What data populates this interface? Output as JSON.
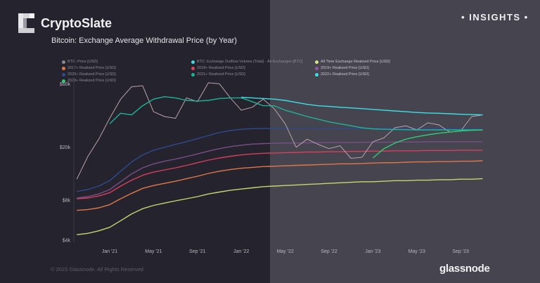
{
  "header": {
    "brand": "CryptoSlate",
    "subtitle": "Bitcoin: Exchange Average Withdrawal Price (by Year)",
    "badge": "• INSIGHTS •"
  },
  "footer": {
    "copyright": "© 2023 Glassnode. All Rights Reserved.",
    "logo_text": "glassnode"
  },
  "colors": {
    "background_left": "#25232d",
    "background_right": "#45444f"
  },
  "chart_data": {
    "type": "line",
    "title": "Bitcoin: Exchange Average Withdrawal Price (by Year)",
    "y_scale": "log",
    "ylim": [
      4000,
      70000
    ],
    "y_ticks": [
      {
        "value": 60000,
        "label": "$60k"
      },
      {
        "value": 20000,
        "label": "$20k"
      },
      {
        "value": 8000,
        "label": "$8k"
      },
      {
        "value": 4000,
        "label": "$4k"
      }
    ],
    "x_ticks": [
      {
        "value": "2021-01",
        "label": "Jan '21"
      },
      {
        "value": "2021-05",
        "label": "May '21"
      },
      {
        "value": "2021-09",
        "label": "Sep '21"
      },
      {
        "value": "2022-01",
        "label": "Jan '22"
      },
      {
        "value": "2022-05",
        "label": "May '22"
      },
      {
        "value": "2022-09",
        "label": "Sep '22"
      },
      {
        "value": "2023-01",
        "label": "Jan '23"
      },
      {
        "value": "2023-05",
        "label": "May '23"
      },
      {
        "value": "2023-09",
        "label": "Sep '23"
      }
    ],
    "grid": false,
    "legend_position": "top",
    "x": [
      "2020-10",
      "2020-11",
      "2020-12",
      "2021-01",
      "2021-02",
      "2021-03",
      "2021-04",
      "2021-05",
      "2021-06",
      "2021-07",
      "2021-08",
      "2021-09",
      "2021-10",
      "2021-11",
      "2021-12",
      "2022-01",
      "2022-02",
      "2022-03",
      "2022-04",
      "2022-05",
      "2022-06",
      "2022-07",
      "2022-08",
      "2022-09",
      "2022-10",
      "2022-11",
      "2022-12",
      "2023-01",
      "2023-02",
      "2023-03",
      "2023-04",
      "2023-05",
      "2023-06",
      "2023-07",
      "2023-08",
      "2023-09",
      "2023-10",
      "2023-11"
    ],
    "legend": [
      {
        "name": "BTC: Price [USD]",
        "color": "#8a8990",
        "col": 0
      },
      {
        "name": "2017+ Realized Price [USD]",
        "color": "#e0784a",
        "col": 0
      },
      {
        "name": "2020+ Realized Price [USD]",
        "color": "#2f4a8c",
        "col": 0
      },
      {
        "name": "2023+ Realized Price [USD]",
        "color": "#2ecc71",
        "col": 0
      },
      {
        "name": "BTC: Exchange Outflow Volume (Total) - All Exchanges [BTC]",
        "color": "#3fd6e6",
        "col": 1
      },
      {
        "name": "2018+ Realized Price [USD]",
        "color": "#d6405c",
        "col": 1
      },
      {
        "name": "2021+ Realized Price [USD]",
        "color": "#1fb39a",
        "col": 1
      },
      {
        "name": "All Time Exchange Realized Price [USD]",
        "color": "#d9e08a",
        "col": 2
      },
      {
        "name": "2019+ Realized Price [USD]",
        "color": "#8a5a9c",
        "col": 2
      },
      {
        "name": "2022+ Realized Price [USD]",
        "color": "#3ce0e6",
        "col": 2
      }
    ],
    "series": [
      {
        "name": "All Time Exchange Realized Price [USD]",
        "color": "#c9d66e",
        "values": [
          4400,
          4500,
          4700,
          5000,
          5600,
          6300,
          6900,
          7300,
          7600,
          7900,
          8200,
          8500,
          8900,
          9200,
          9500,
          9700,
          9900,
          10100,
          10200,
          10300,
          10400,
          10500,
          10600,
          10700,
          10800,
          10900,
          11000,
          11000,
          11100,
          11200,
          11200,
          11300,
          11300,
          11400,
          11400,
          11500,
          11500,
          11600
        ]
      },
      {
        "name": "2017+ Realized Price [USD]",
        "color": "#e0784a",
        "values": [
          6700,
          6800,
          7000,
          7400,
          8200,
          9000,
          9800,
          10300,
          10700,
          11100,
          11600,
          12100,
          12700,
          13200,
          13600,
          13900,
          14100,
          14300,
          14400,
          14500,
          14600,
          14700,
          14800,
          14900,
          15000,
          15000,
          15100,
          15200,
          15300,
          15300,
          15400,
          15500,
          15500,
          15600,
          15600,
          15700,
          15700,
          15800
        ]
      },
      {
        "name": "2018+ Realized Price [USD]",
        "color": "#d6405c",
        "values": [
          8200,
          8300,
          8600,
          9100,
          10200,
          11300,
          12300,
          13000,
          13500,
          14000,
          14600,
          15300,
          16000,
          16600,
          17100,
          17500,
          17800,
          18000,
          18100,
          18200,
          18300,
          18400,
          18400,
          18500,
          18500,
          18600,
          18600,
          18700,
          18700,
          18800,
          18800,
          18800,
          18900,
          18900,
          18900,
          19000,
          19000,
          19000
        ]
      },
      {
        "name": "2019+ Realized Price [USD]",
        "color": "#7a4e86",
        "values": [
          8300,
          8500,
          8900,
          9600,
          11000,
          12600,
          14000,
          15000,
          15700,
          16300,
          17000,
          17800,
          18700,
          19500,
          20200,
          20700,
          21100,
          21300,
          21400,
          21500,
          21500,
          21600,
          21600,
          21700,
          21700,
          21700,
          21800,
          21800,
          21800,
          21900,
          21900,
          21900,
          22000,
          22000,
          22000,
          22000,
          22000,
          22000
        ]
      },
      {
        "name": "2020+ Realized Price [USD]",
        "color": "#2f4a8c",
        "values": [
          9300,
          9600,
          10200,
          11200,
          13200,
          15500,
          17500,
          19000,
          20000,
          21000,
          22000,
          23200,
          24500,
          25800,
          26700,
          27300,
          27600,
          27700,
          27800,
          27800,
          27800,
          27800,
          27800,
          27700,
          27700,
          27700,
          27700,
          27700,
          27700,
          27700,
          27700,
          27700,
          27700,
          27700,
          27700,
          27700,
          27700,
          27700
        ]
      },
      {
        "name": "BTC: Price [USD]",
        "color": "#b9a3ad",
        "values": [
          11500,
          17000,
          23000,
          33000,
          46000,
          57000,
          58000,
          37000,
          34000,
          33000,
          47000,
          44000,
          61000,
          60000,
          47000,
          38000,
          40000,
          46000,
          39000,
          30000,
          20000,
          23000,
          21000,
          19500,
          20500,
          16500,
          16800,
          22000,
          23500,
          28000,
          29000,
          27000,
          30500,
          29500,
          26000,
          26500,
          34000,
          35000
        ]
      },
      {
        "name": "2021+ Realized Price [USD]",
        "color": "#1fb39a",
        "values": [
          null,
          null,
          null,
          30000,
          36000,
          35000,
          41000,
          46000,
          48000,
          47000,
          45000,
          44500,
          45000,
          46500,
          47000,
          47000,
          44000,
          41000,
          41000,
          38000,
          36000,
          34000,
          32500,
          31000,
          30000,
          29000,
          28000,
          27500,
          27300,
          27200,
          27100,
          27000,
          27000,
          27000,
          27000,
          27000,
          27000,
          27000
        ]
      },
      {
        "name": "2022+ Realized Price [USD]",
        "color": "#3ce0e6",
        "values": [
          null,
          null,
          null,
          null,
          null,
          null,
          null,
          null,
          null,
          null,
          null,
          null,
          null,
          null,
          null,
          47500,
          47000,
          46500,
          46000,
          45000,
          43500,
          42000,
          41000,
          40500,
          40000,
          39500,
          39000,
          38500,
          38000,
          37500,
          37000,
          36500,
          36200,
          36000,
          35700,
          35400,
          35200,
          35000
        ]
      },
      {
        "name": "2023+ Realized Price [USD]",
        "color": "#2ecc71",
        "values": [
          null,
          null,
          null,
          null,
          null,
          null,
          null,
          null,
          null,
          null,
          null,
          null,
          null,
          null,
          null,
          null,
          null,
          null,
          null,
          null,
          null,
          null,
          null,
          null,
          null,
          null,
          null,
          16600,
          19500,
          21500,
          23000,
          24000,
          24800,
          25500,
          26000,
          26500,
          26800,
          27000
        ]
      }
    ]
  }
}
